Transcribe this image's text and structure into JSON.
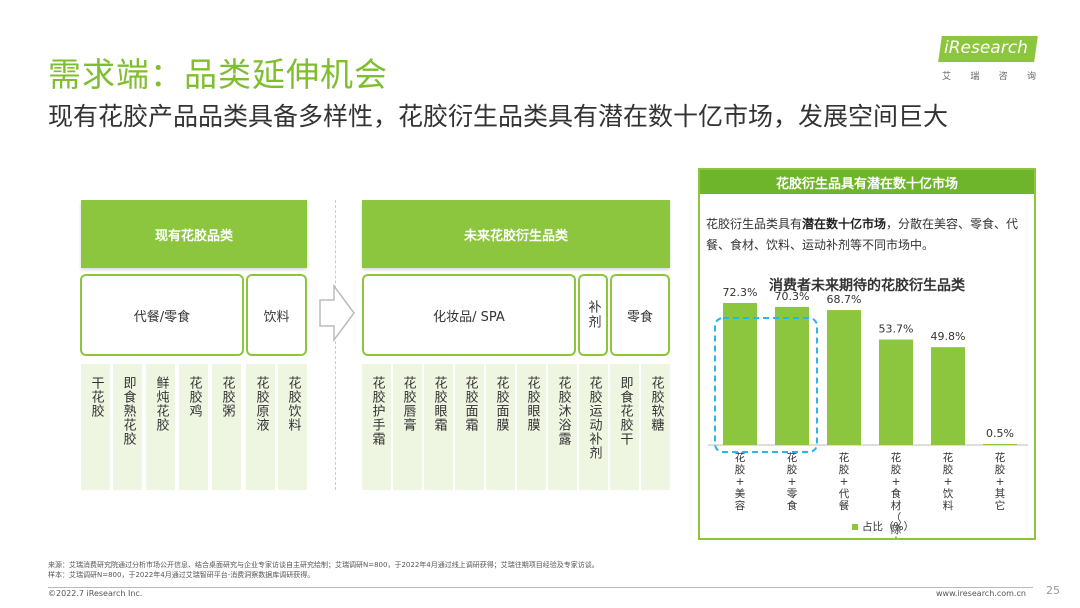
{
  "title": "需求端：品类延伸机会",
  "subtitle": "现有花胶产品品类具备多样性，花胶衍生品类具有潜在数十亿市场，发展空间巨大",
  "logo": {
    "text": "iResearch",
    "sub": [
      "艾",
      "瑞",
      "咨",
      "询"
    ]
  },
  "existing": {
    "header": "现有花胶品类",
    "categories": [
      "代餐/零食",
      "饮料"
    ],
    "items": [
      "干花胶",
      "即食熟花胶",
      "鲜炖花胶",
      "花胶鸡",
      "花胶粥",
      "花胶原液",
      "花胶饮料"
    ]
  },
  "future": {
    "header": "未来花胶衍生品类",
    "categories": [
      "化妆品/ SPA",
      "补剂",
      "零食"
    ],
    "items": [
      "花胶护手霜",
      "花胶唇膏",
      "花胶眼霜",
      "花胶面霜",
      "花胶面膜",
      "花胶眼膜",
      "花胶沐浴露",
      "花胶运动补剂",
      "即食花胶干",
      "花胶软糖"
    ]
  },
  "panel": {
    "header": "花胶衍生品具有潜在数十亿市场",
    "desc_pre": "花胶衍生品类具有",
    "desc_bold": "潜在数十亿市场",
    "desc_post": "，分散在美容、零食、代餐、食材、饮料、运动补剂等不同市场中。"
  },
  "chart_data": {
    "type": "bar",
    "title": "消费者未来期待的花胶衍生品类",
    "categories": [
      "花胶+美容",
      "花胶+零食",
      "花胶+代餐",
      "花胶+食材（除火锅）",
      "花胶+饮料",
      "花胶+其它"
    ],
    "series": [
      {
        "name": "占比（%）",
        "values": [
          72.3,
          70.3,
          68.7,
          53.7,
          49.8,
          0.5
        ]
      }
    ],
    "value_labels": [
      "72.3%",
      "70.3%",
      "68.7%",
      "53.7%",
      "49.8%",
      "0.5%"
    ],
    "highlighted": [
      "花胶+美容",
      "花胶+零食"
    ],
    "ylim": [
      0,
      80
    ],
    "colors": {
      "bar": "#8cc63f",
      "highlight": "#29b6e8"
    }
  },
  "footer": {
    "source": "来源：艾瑞消费研究院通过分析市场公开信息、结合桌面研究与企业专家访谈自主研究绘制；艾瑞调研N=800，于2022年4月通过线上调研获得；艾瑞往期项目经验及专家访谈。",
    "sample": "样本：艾瑞调研N=800，于2022年4月通过艾瑞智研平台-消费洞察数据库调研获得。",
    "copyright": "©2022.7 iResearch Inc.",
    "website": "www.iresearch.com.cn",
    "page": "25"
  }
}
